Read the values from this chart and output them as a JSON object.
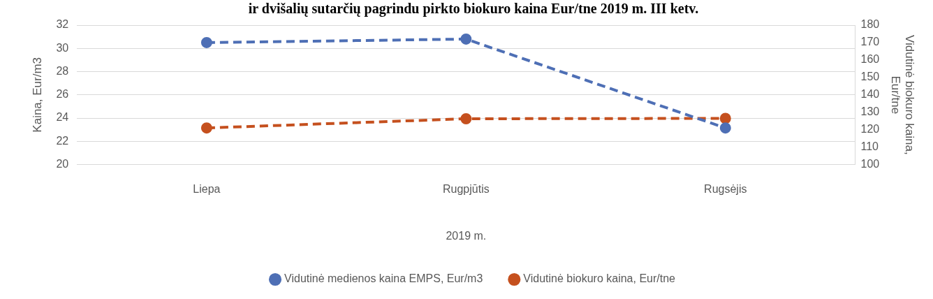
{
  "chart_data": {
    "type": "line",
    "title": "ir dvišalių sutarčių pagrindu pirkto biokuro kaina Eur/tne 2019 m. III ketv.",
    "categories": [
      "Liepa",
      "Rugpjūtis",
      "Rugsėjis"
    ],
    "xlabel": "2019 m.",
    "ylabel": "Kaina, Eur/m3",
    "y2label": "Vidutinė biokuro kaina, Eur/tne",
    "series": [
      {
        "name": "Vidutinė medienos kaina EMPS, Eur/m3",
        "color": "#4e6fb5",
        "values": [
          30.5,
          30.8,
          23.15
        ]
      },
      {
        "name": "Vidutinė biokuro kaina, Eur/tne",
        "color": "#c5501e",
        "axis": "y2",
        "values": [
          121,
          126.3,
          126.5
        ]
      }
    ],
    "ylim": [
      20,
      32
    ],
    "yticks": [
      20,
      22,
      24,
      26,
      28,
      30,
      32
    ],
    "y2lim": [
      100,
      180
    ],
    "y2ticks": [
      100,
      110,
      120,
      130,
      140,
      150,
      160,
      170,
      180
    ],
    "grid": "y",
    "legend": "bottom",
    "marker": "circle",
    "line_style": "dashed"
  }
}
